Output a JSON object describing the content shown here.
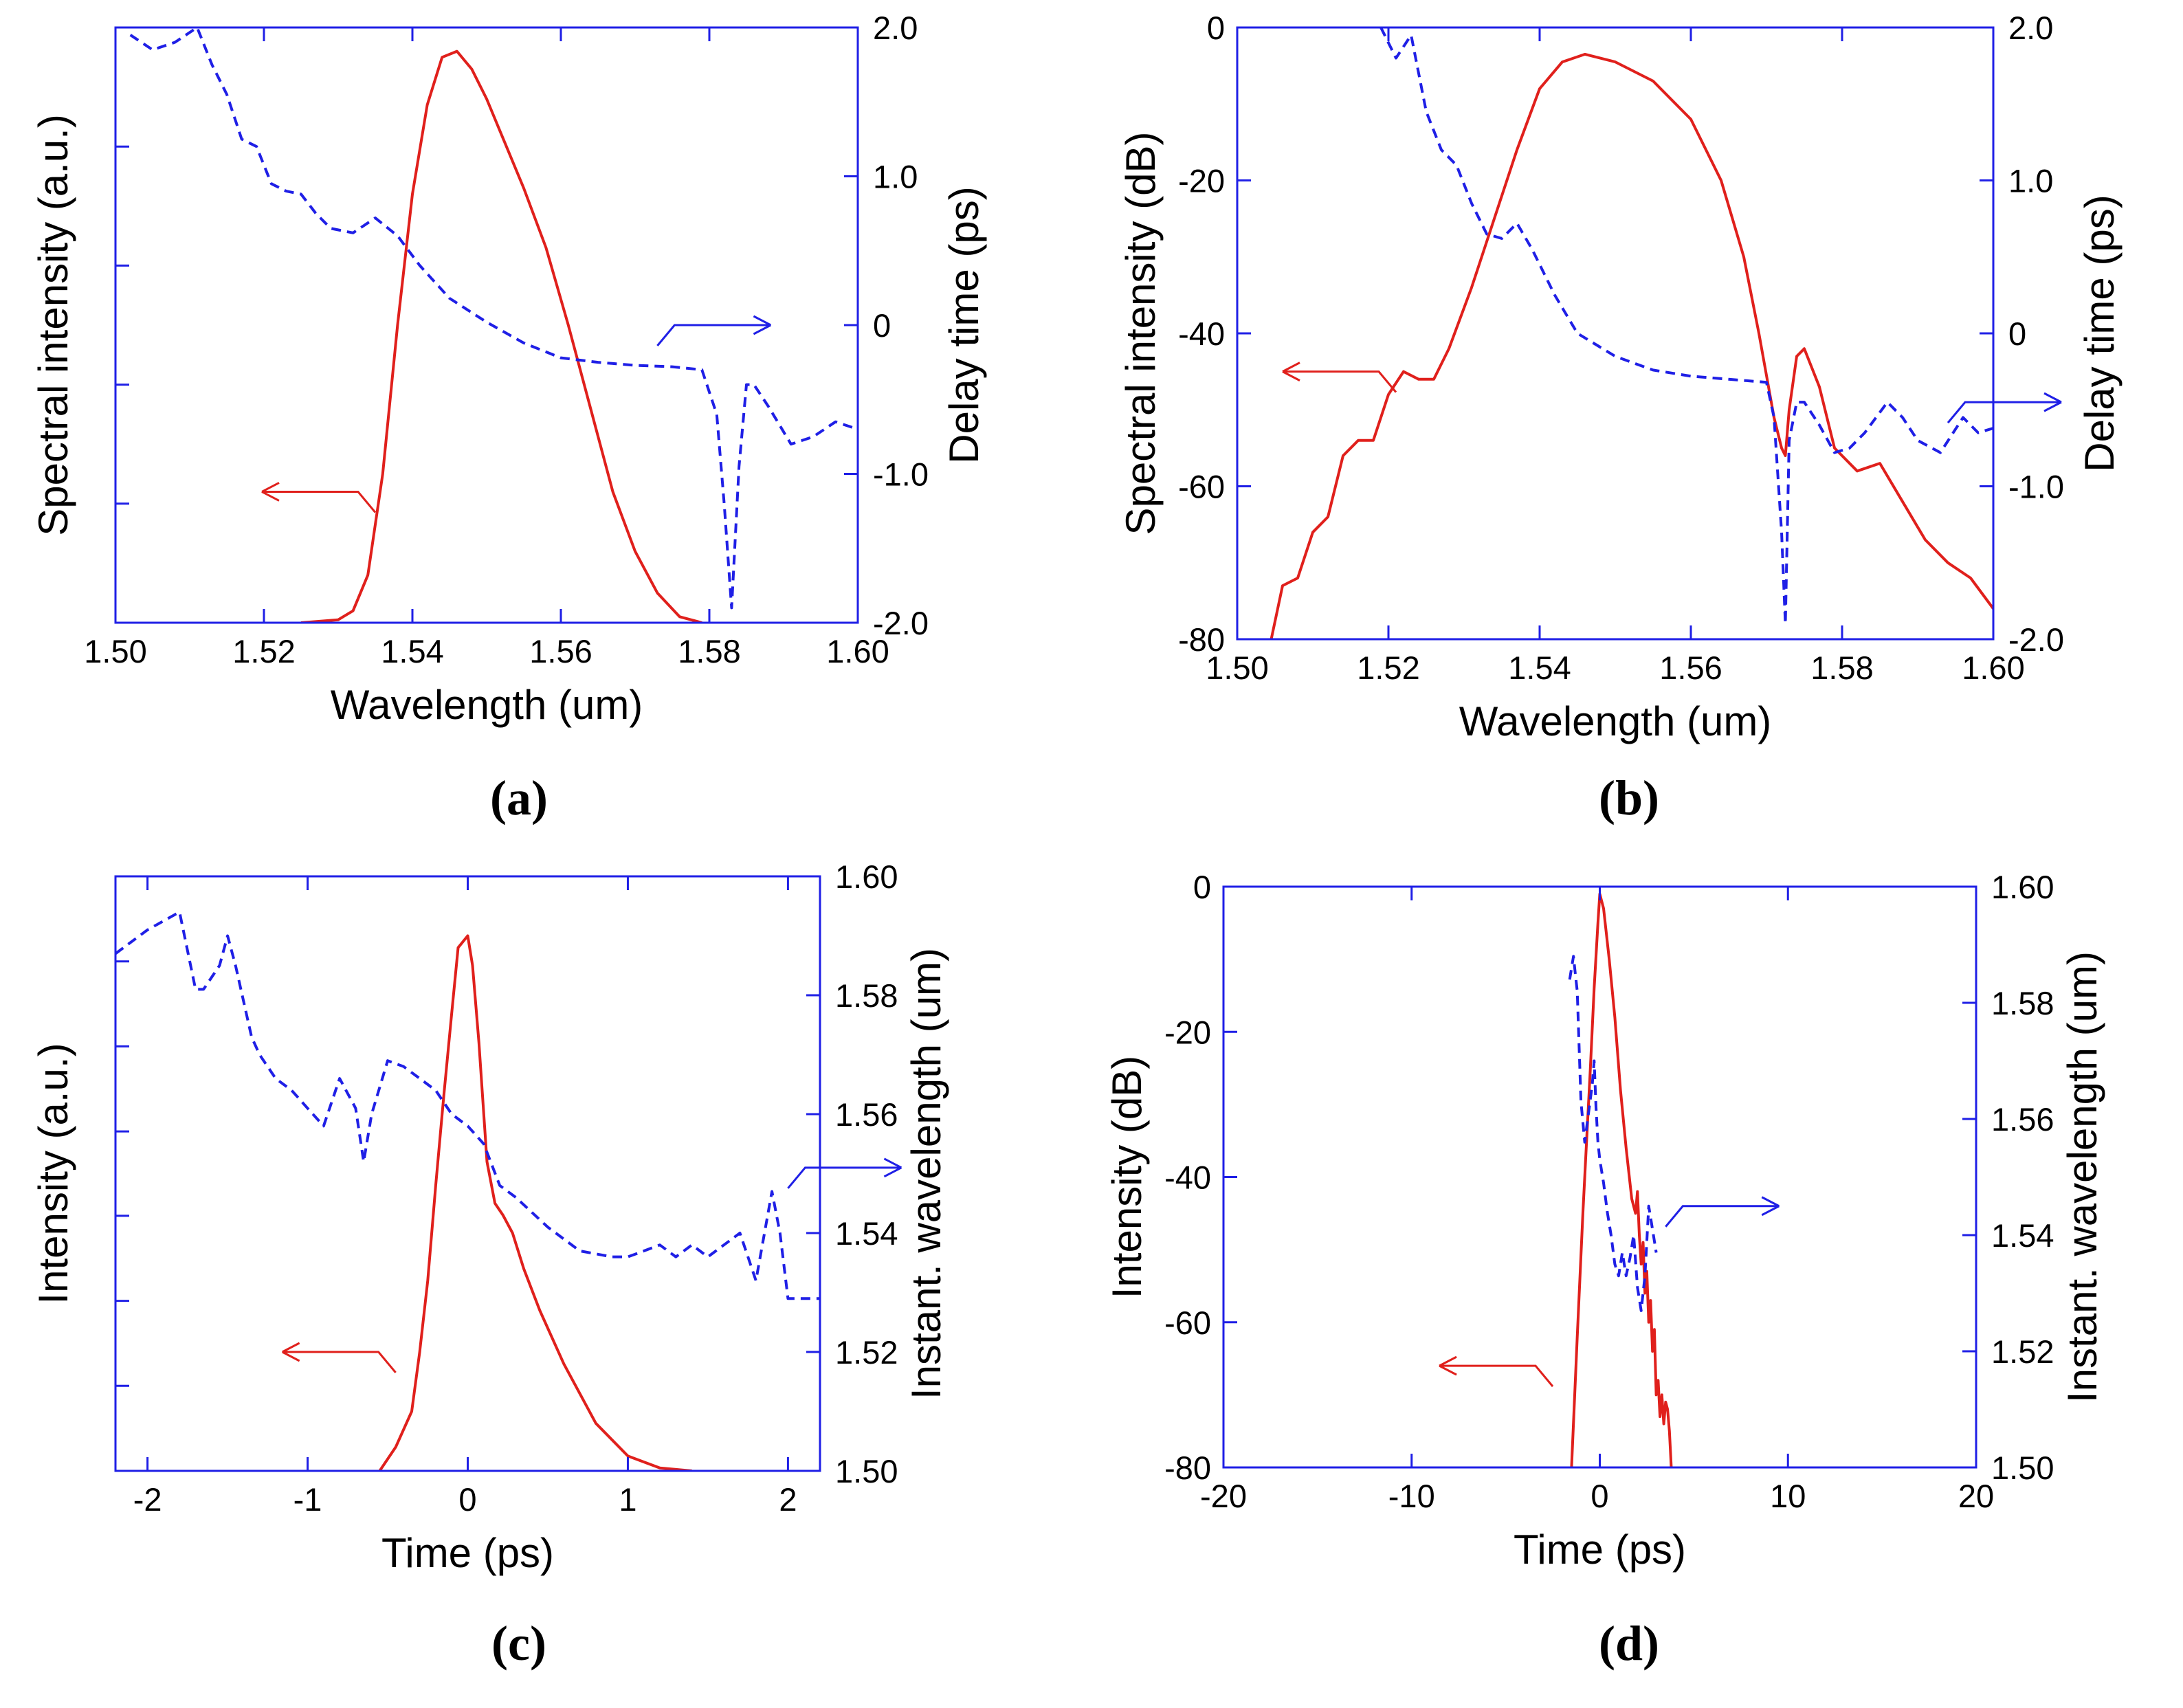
{
  "chart_data": [
    {
      "type": "line",
      "panel_label": "a",
      "xlabel": "Wavelength (um)",
      "ylabel_left": "Spectral intensity (a.u.)",
      "ylabel_right": "Delay time (ps)",
      "xlim": [
        1.5,
        1.6
      ],
      "ylim_left": [
        0,
        1
      ],
      "ylim_right": [
        -2.0,
        2.0
      ],
      "xticks": [
        "1.50",
        "1.52",
        "1.54",
        "1.56",
        "1.58",
        "1.60"
      ],
      "yticks_left": [],
      "yticks_right": [
        "2.0",
        "1.0",
        "0",
        "-1.0",
        "-2.0"
      ],
      "xtick_values": [
        1.5,
        1.52,
        1.54,
        1.56,
        1.58,
        1.6
      ],
      "ytick_right_values": [
        2.0,
        1.0,
        0,
        -1.0,
        -2.0
      ],
      "minor_ticks_left": [
        0.2,
        0.4,
        0.6,
        0.8
      ],
      "arrows": [
        {
          "direction": "left",
          "color": "#e0201c",
          "at": [
            1.535,
            0.22
          ],
          "ref": "left"
        },
        {
          "direction": "right",
          "color": "#1f1fe6",
          "at": [
            1.573,
            0.0
          ],
          "ref": "right"
        }
      ],
      "series": [
        {
          "name": "Spectral intensity",
          "axis": "left",
          "color": "#e0201c",
          "style": "solid",
          "x": [
            1.525,
            1.53,
            1.532,
            1.534,
            1.536,
            1.538,
            1.54,
            1.542,
            1.544,
            1.546,
            1.548,
            1.55,
            1.552,
            1.555,
            1.558,
            1.561,
            1.564,
            1.567,
            1.57,
            1.573,
            1.576,
            1.579
          ],
          "y": [
            0.0,
            0.005,
            0.02,
            0.08,
            0.25,
            0.5,
            0.72,
            0.87,
            0.95,
            0.96,
            0.93,
            0.88,
            0.82,
            0.73,
            0.63,
            0.5,
            0.36,
            0.22,
            0.12,
            0.05,
            0.01,
            0.0
          ]
        },
        {
          "name": "Delay time",
          "axis": "right",
          "color": "#1f1fe6",
          "style": "dashed",
          "x": [
            1.502,
            1.505,
            1.508,
            1.511,
            1.513,
            1.515,
            1.517,
            1.519,
            1.521,
            1.523,
            1.525,
            1.527,
            1.529,
            1.532,
            1.535,
            1.538,
            1.541,
            1.545,
            1.55,
            1.555,
            1.56,
            1.565,
            1.57,
            1.575,
            1.579,
            1.581,
            1.582,
            1.583,
            1.584,
            1.585,
            1.586,
            1.588,
            1.591,
            1.594,
            1.597,
            1.6
          ],
          "y": [
            1.95,
            1.85,
            1.9,
            2.0,
            1.75,
            1.55,
            1.25,
            1.2,
            0.95,
            0.9,
            0.88,
            0.75,
            0.65,
            0.62,
            0.72,
            0.6,
            0.4,
            0.18,
            0.02,
            -0.12,
            -0.22,
            -0.25,
            -0.27,
            -0.28,
            -0.3,
            -0.6,
            -1.2,
            -1.9,
            -0.95,
            -0.4,
            -0.4,
            -0.55,
            -0.8,
            -0.75,
            -0.65,
            -0.7
          ]
        }
      ]
    },
    {
      "type": "line",
      "panel_label": "b",
      "xlabel": "Wavelength (um)",
      "ylabel_left": "Spectral intensity (dB)",
      "ylabel_right": "Delay time (ps)",
      "xlim": [
        1.5,
        1.6
      ],
      "ylim_left": [
        -80,
        0
      ],
      "ylim_right": [
        -2.0,
        2.0
      ],
      "xticks": [
        "1.50",
        "1.52",
        "1.54",
        "1.56",
        "1.58",
        "1.60"
      ],
      "yticks_left": [
        "0",
        "-20",
        "-40",
        "-60",
        "-80"
      ],
      "yticks_right": [
        "2.0",
        "1.0",
        "0",
        "-1.0",
        "-2.0"
      ],
      "xtick_values": [
        1.5,
        1.52,
        1.54,
        1.56,
        1.58,
        1.6
      ],
      "ytick_left_values": [
        0,
        -20,
        -40,
        -60,
        -80
      ],
      "ytick_right_values": [
        2.0,
        1.0,
        0,
        -1.0,
        -2.0
      ],
      "arrows": [
        {
          "direction": "left",
          "color": "#e0201c",
          "at": [
            1.521,
            -45
          ],
          "ref": "left"
        },
        {
          "direction": "right",
          "color": "#1f1fe6",
          "at": [
            1.594,
            -0.45
          ],
          "ref": "right"
        }
      ],
      "series": [
        {
          "name": "Spectral intensity",
          "axis": "left",
          "color": "#e0201c",
          "style": "solid",
          "x": [
            1.5045,
            1.506,
            1.508,
            1.51,
            1.512,
            1.514,
            1.516,
            1.518,
            1.52,
            1.522,
            1.524,
            1.526,
            1.528,
            1.531,
            1.534,
            1.537,
            1.54,
            1.543,
            1.546,
            1.55,
            1.555,
            1.56,
            1.564,
            1.567,
            1.569,
            1.571,
            1.572,
            1.5725,
            1.573,
            1.574,
            1.575,
            1.577,
            1.579,
            1.582,
            1.585,
            1.588,
            1.591,
            1.594,
            1.597,
            1.6
          ],
          "y": [
            -80,
            -73,
            -72,
            -66,
            -64,
            -56,
            -54,
            -54,
            -48,
            -45,
            -46,
            -46,
            -42,
            -34,
            -25,
            -16,
            -8,
            -4.5,
            -3.5,
            -4.5,
            -7,
            -12,
            -20,
            -30,
            -40,
            -51,
            -55,
            -56,
            -50,
            -43,
            -42,
            -47,
            -55,
            -58,
            -57,
            -62,
            -67,
            -70,
            -72,
            -76
          ]
        },
        {
          "name": "Delay time",
          "axis": "right",
          "color": "#1f1fe6",
          "style": "dashed",
          "x": [
            1.519,
            1.521,
            1.523,
            1.525,
            1.527,
            1.529,
            1.531,
            1.533,
            1.535,
            1.537,
            1.539,
            1.542,
            1.545,
            1.55,
            1.555,
            1.56,
            1.565,
            1.57,
            1.571,
            1.572,
            1.5725,
            1.573,
            1.574,
            1.575,
            1.577,
            1.579,
            1.581,
            1.583,
            1.586,
            1.588,
            1.59,
            1.593,
            1.596,
            1.598,
            1.6
          ],
          "y": [
            2.0,
            1.8,
            1.95,
            1.45,
            1.2,
            1.1,
            0.85,
            0.65,
            0.62,
            0.72,
            0.55,
            0.25,
            0.0,
            -0.15,
            -0.24,
            -0.28,
            -0.3,
            -0.32,
            -0.55,
            -1.3,
            -1.9,
            -0.7,
            -0.45,
            -0.45,
            -0.6,
            -0.78,
            -0.75,
            -0.65,
            -0.45,
            -0.55,
            -0.7,
            -0.78,
            -0.55,
            -0.65,
            -0.62
          ]
        }
      ]
    },
    {
      "type": "line",
      "panel_label": "c",
      "xlabel": "Time (ps)",
      "ylabel_left": "Intensity (a.u.)",
      "ylabel_right": "Instant. wavelength (um)",
      "xlim": [
        -2.2,
        2.2
      ],
      "ylim_left": [
        0,
        1
      ],
      "ylim_right": [
        1.5,
        1.6
      ],
      "xticks": [
        "-2",
        "-1",
        "0",
        "1",
        "2"
      ],
      "yticks_left": [],
      "yticks_right": [
        "1.60",
        "1.58",
        "1.56",
        "1.54",
        "1.52",
        "1.50"
      ],
      "xtick_values": [
        -2,
        -1,
        0,
        1,
        2
      ],
      "ytick_right_values": [
        1.6,
        1.58,
        1.56,
        1.54,
        1.52,
        1.5
      ],
      "minor_ticks_left": [
        0.143,
        0.286,
        0.429,
        0.571,
        0.714,
        0.857
      ],
      "arrows": [
        {
          "direction": "left",
          "color": "#e0201c",
          "at": [
            -0.45,
            0.2
          ],
          "ref": "left"
        },
        {
          "direction": "right",
          "color": "#1f1fe6",
          "at": [
            2.0,
            1.551
          ],
          "ref": "right"
        }
      ],
      "series": [
        {
          "name": "Intensity",
          "axis": "left",
          "color": "#e0201c",
          "style": "solid",
          "x": [
            -0.55,
            -0.45,
            -0.35,
            -0.3,
            -0.25,
            -0.2,
            -0.15,
            -0.1,
            -0.06,
            0.0,
            0.03,
            0.07,
            0.12,
            0.17,
            0.22,
            0.28,
            0.35,
            0.45,
            0.6,
            0.8,
            1.0,
            1.2,
            1.4
          ],
          "y": [
            0.0,
            0.04,
            0.1,
            0.2,
            0.32,
            0.48,
            0.63,
            0.77,
            0.88,
            0.9,
            0.85,
            0.72,
            0.52,
            0.45,
            0.43,
            0.4,
            0.34,
            0.27,
            0.18,
            0.08,
            0.025,
            0.005,
            0.0
          ]
        },
        {
          "name": "Instant. wavelength",
          "axis": "right",
          "color": "#1f1fe6",
          "style": "dashed",
          "x": [
            -2.2,
            -2.0,
            -1.8,
            -1.7,
            -1.65,
            -1.55,
            -1.5,
            -1.45,
            -1.35,
            -1.3,
            -1.2,
            -1.1,
            -1.0,
            -0.9,
            -0.8,
            -0.7,
            -0.65,
            -0.6,
            -0.5,
            -0.4,
            -0.3,
            -0.2,
            -0.1,
            0.0,
            0.1,
            0.2,
            0.3,
            0.5,
            0.7,
            0.9,
            1.0,
            1.1,
            1.2,
            1.3,
            1.4,
            1.5,
            1.6,
            1.7,
            1.75,
            1.8,
            1.9,
            1.95,
            2.0,
            2.2
          ],
          "y": [
            1.587,
            1.591,
            1.594,
            1.581,
            1.581,
            1.585,
            1.59,
            1.585,
            1.573,
            1.57,
            1.566,
            1.564,
            1.561,
            1.558,
            1.566,
            1.561,
            1.552,
            1.56,
            1.569,
            1.568,
            1.566,
            1.564,
            1.56,
            1.558,
            1.555,
            1.548,
            1.546,
            1.541,
            1.537,
            1.536,
            1.536,
            1.537,
            1.538,
            1.536,
            1.538,
            1.536,
            1.538,
            1.54,
            1.536,
            1.532,
            1.547,
            1.54,
            1.529,
            1.529
          ]
        }
      ]
    },
    {
      "type": "line",
      "panel_label": "d",
      "xlabel": "Time (ps)",
      "ylabel_left": "Intensity (dB)",
      "ylabel_right": "Instant. wavelength (um)",
      "xlim": [
        -20,
        20
      ],
      "ylim_left": [
        -80,
        0
      ],
      "ylim_right": [
        1.5,
        1.6
      ],
      "xticks": [
        "-20",
        "-10",
        "0",
        "10",
        "20"
      ],
      "yticks_left": [
        "0",
        "-20",
        "-40",
        "-60",
        "-80"
      ],
      "yticks_right": [
        "1.60",
        "1.58",
        "1.56",
        "1.54",
        "1.52",
        "1.50"
      ],
      "xtick_values": [
        -20,
        -10,
        0,
        10,
        20
      ],
      "ytick_left_values": [
        0,
        -20,
        -40,
        -60,
        -80
      ],
      "ytick_right_values": [
        1.6,
        1.58,
        1.56,
        1.54,
        1.52,
        1.5
      ],
      "arrows": [
        {
          "direction": "left",
          "color": "#e0201c",
          "at": [
            -2.5,
            -66
          ],
          "ref": "left"
        },
        {
          "direction": "right",
          "color": "#1f1fe6",
          "at": [
            3.5,
            1.545
          ],
          "ref": "right"
        }
      ],
      "series": [
        {
          "name": "Intensity",
          "axis": "left",
          "color": "#e0201c",
          "style": "solid",
          "x": [
            -1.5,
            -1.2,
            -0.9,
            -0.7,
            -0.5,
            -0.3,
            -0.1,
            0.0,
            0.2,
            0.5,
            0.8,
            1.1,
            1.4,
            1.7,
            1.9,
            2.0,
            2.1,
            2.2,
            2.3,
            2.4,
            2.5,
            2.6,
            2.7,
            2.8,
            2.9,
            3.0,
            3.1,
            3.2,
            3.3,
            3.4,
            3.5,
            3.6,
            3.7,
            3.8
          ],
          "y": [
            -80,
            -62,
            -45,
            -35,
            -25,
            -14,
            -5,
            -1,
            -3,
            -10,
            -18,
            -28,
            -36,
            -43,
            -45,
            -42,
            -48,
            -52,
            -49,
            -56,
            -53,
            -60,
            -57,
            -64,
            -61,
            -70,
            -68,
            -73,
            -70,
            -74,
            -71,
            -72,
            -75,
            -80
          ]
        },
        {
          "name": "Instant. wavelength",
          "axis": "right",
          "color": "#1f1fe6",
          "style": "dashed",
          "x": [
            -1.6,
            -1.4,
            -1.3,
            -1.2,
            -1.0,
            -0.8,
            -0.6,
            -0.4,
            -0.3,
            -0.2,
            -0.1,
            0.0,
            0.2,
            0.4,
            0.6,
            0.8,
            1.0,
            1.2,
            1.4,
            1.6,
            1.8,
            2.0,
            2.2,
            2.4,
            2.6,
            2.8,
            3.0
          ],
          "y": [
            1.584,
            1.588,
            1.585,
            1.582,
            1.563,
            1.556,
            1.561,
            1.566,
            1.57,
            1.562,
            1.556,
            1.553,
            1.549,
            1.544,
            1.54,
            1.535,
            1.533,
            1.537,
            1.533,
            1.536,
            1.54,
            1.531,
            1.527,
            1.533,
            1.545,
            1.541,
            1.537
          ]
        }
      ]
    }
  ]
}
